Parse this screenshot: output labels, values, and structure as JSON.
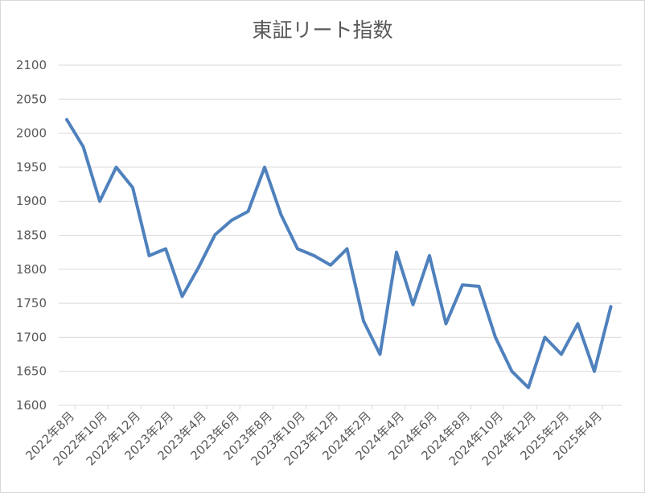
{
  "chart_data": {
    "type": "line",
    "title": "東証リート指数",
    "xlabel": "",
    "ylabel": "",
    "ylim": [
      1600,
      2100
    ],
    "y_ticks": [
      1600,
      1650,
      1700,
      1750,
      1800,
      1850,
      1900,
      1950,
      2000,
      2050,
      2100
    ],
    "x_tick_labels": [
      "2022年8月",
      "2022年10月",
      "2022年12月",
      "2023年2月",
      "2023年4月",
      "2023年6月",
      "2023年8月",
      "2023年10月",
      "2023年12月",
      "2024年2月",
      "2024年4月",
      "2024年6月",
      "2024年8月",
      "2024年10月",
      "2024年12月",
      "2025年2月",
      "2025年4月"
    ],
    "grid": true,
    "legend": "none",
    "color": "#4f81bd",
    "series": [
      {
        "values": [
          2020,
          1980,
          1900,
          1950,
          1920,
          1820,
          1830,
          1760,
          1803,
          1851,
          1872,
          1885,
          1950,
          1880,
          1830,
          1820,
          1806,
          1830,
          1724,
          1675,
          1825,
          1748,
          1820,
          1720,
          1777,
          1775,
          1700,
          1650,
          1626,
          1700,
          1675,
          1720,
          1650,
          1745
        ]
      }
    ]
  }
}
